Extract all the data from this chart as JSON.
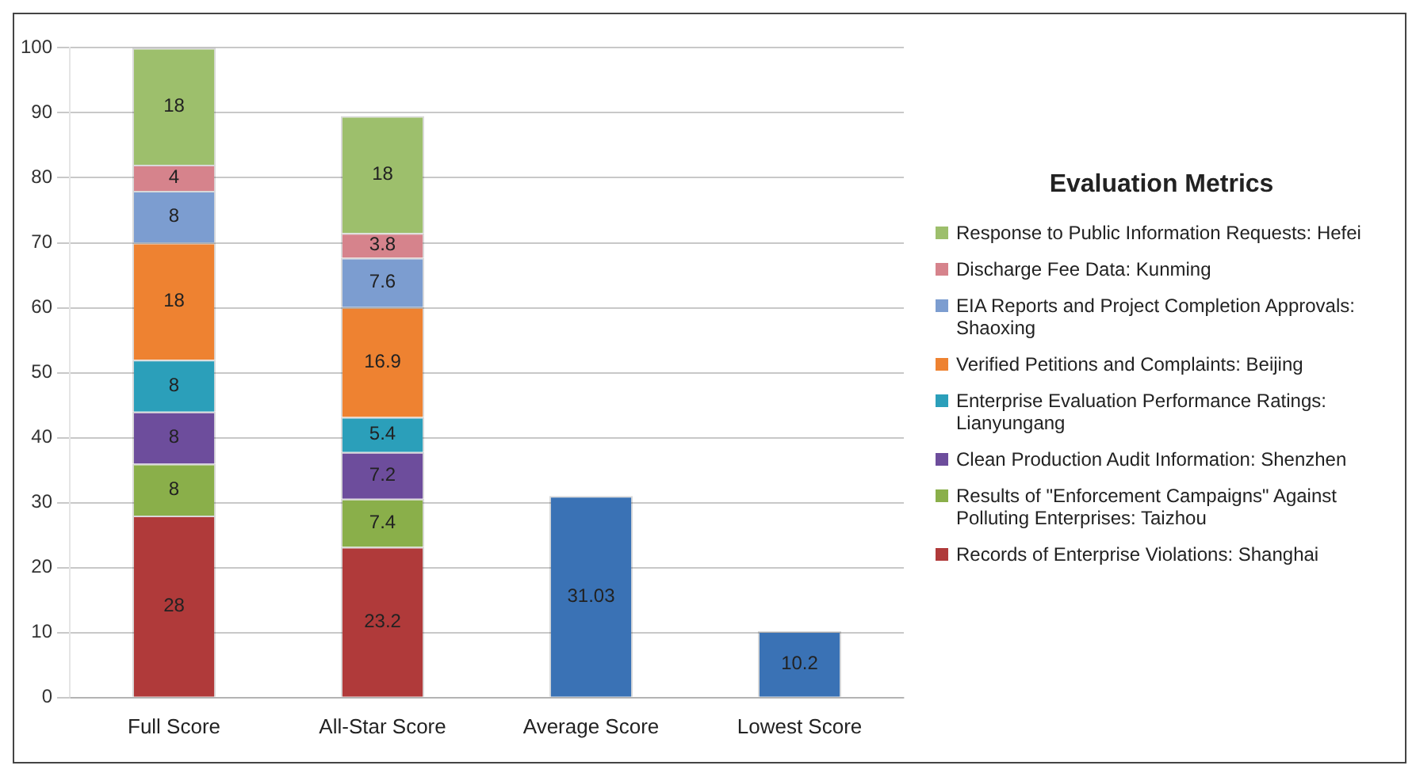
{
  "chart_data": {
    "type": "bar",
    "stacked": true,
    "categories": [
      "Full Score",
      "All-Star Score",
      "Average Score",
      "Lowest Score"
    ],
    "series": [
      {
        "name": "Records of Enterprise Violations: Shanghai",
        "color": "#b03a3a",
        "values": [
          28,
          23.2,
          null,
          null
        ]
      },
      {
        "name": "Results of \"Enforcement Campaigns\" Against Polluting Enterprises: Taizhou",
        "color": "#8aaf4a",
        "values": [
          8,
          7.4,
          null,
          null
        ]
      },
      {
        "name": "Clean Production Audit Information: Shenzhen",
        "color": "#6d4d9c",
        "values": [
          8,
          7.2,
          null,
          null
        ]
      },
      {
        "name": "Enterprise Evaluation Performance Ratings: Lianyungang",
        "color": "#2b9fba",
        "values": [
          8,
          5.4,
          null,
          null
        ]
      },
      {
        "name": "Verified Petitions and Complaints: Beijing",
        "color": "#ee8231",
        "values": [
          18,
          16.9,
          null,
          null
        ]
      },
      {
        "name": "EIA Reports and Project Completion Approvals: Shaoxing",
        "color": "#7c9dd0",
        "values": [
          8,
          7.6,
          null,
          null
        ]
      },
      {
        "name": "Discharge Fee Data: Kunming",
        "color": "#d6838c",
        "values": [
          4,
          3.8,
          null,
          null
        ]
      },
      {
        "name": "Response to Public Information Requests: Hefei",
        "color": "#9dbf6c",
        "values": [
          18,
          18,
          null,
          null
        ]
      },
      {
        "color": "#3a72b5",
        "values": [
          null,
          null,
          31.03,
          10.2
        ]
      }
    ],
    "ylim": [
      0,
      100
    ],
    "yticks": [
      0,
      10,
      20,
      30,
      40,
      50,
      60,
      70,
      80,
      90,
      100
    ],
    "grid": "y",
    "data_labels": true,
    "legend": "right",
    "legend_title": "Evaluation Metrics"
  }
}
